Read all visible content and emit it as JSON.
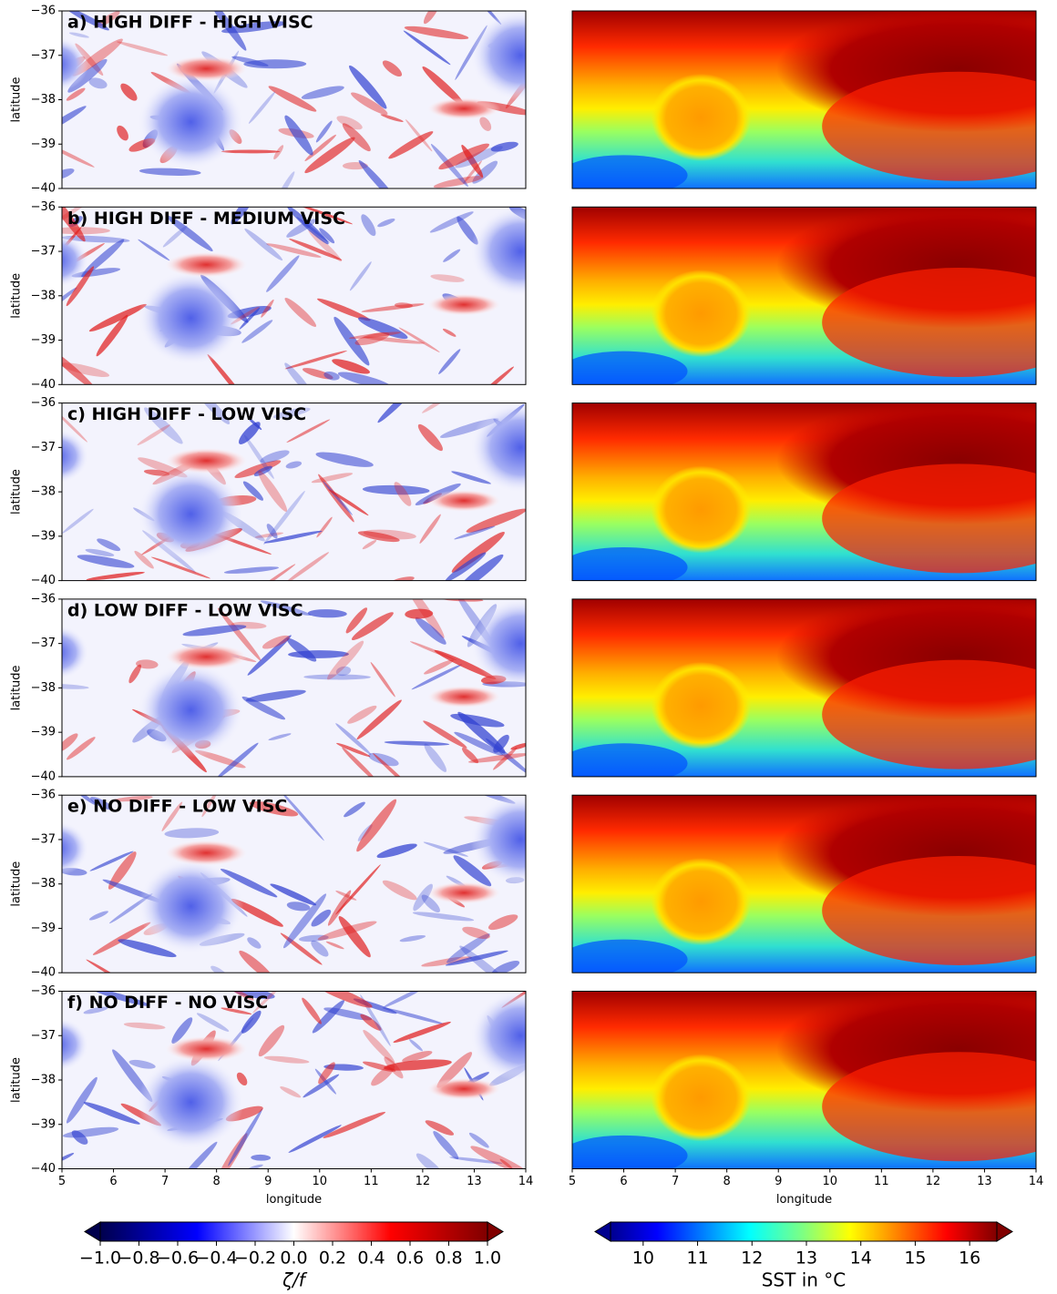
{
  "chart_data": [
    {
      "type": "heatmap",
      "colormap": "seismic",
      "title": "a) HIGH DIFF - HIGH VISC",
      "ylabel": "latitude",
      "xlim": [
        5,
        14
      ],
      "ylim": [
        -40,
        -36
      ],
      "yticks": [
        {
          "value": -36,
          "label": "−36"
        },
        {
          "value": -37,
          "label": "−37"
        },
        {
          "value": -38,
          "label": "−38"
        },
        {
          "value": -39,
          "label": "−39"
        },
        {
          "value": -40,
          "label": "−40"
        }
      ]
    },
    {
      "type": "heatmap",
      "colormap": "jet",
      "xlim": [
        5,
        14
      ],
      "ylim": [
        -40,
        -36
      ]
    },
    {
      "type": "heatmap",
      "colormap": "seismic",
      "title": "b) HIGH DIFF - MEDIUM VISC",
      "ylabel": "latitude",
      "xlim": [
        5,
        14
      ],
      "ylim": [
        -40,
        -36
      ],
      "yticks": [
        {
          "value": -36,
          "label": "−36"
        },
        {
          "value": -37,
          "label": "−37"
        },
        {
          "value": -38,
          "label": "−38"
        },
        {
          "value": -39,
          "label": "−39"
        },
        {
          "value": -40,
          "label": "−40"
        }
      ]
    },
    {
      "type": "heatmap",
      "colormap": "jet",
      "xlim": [
        5,
        14
      ],
      "ylim": [
        -40,
        -36
      ]
    },
    {
      "type": "heatmap",
      "colormap": "seismic",
      "title": "c) HIGH DIFF - LOW VISC",
      "ylabel": "latitude",
      "xlim": [
        5,
        14
      ],
      "ylim": [
        -40,
        -36
      ],
      "yticks": [
        {
          "value": -36,
          "label": "−36"
        },
        {
          "value": -37,
          "label": "−37"
        },
        {
          "value": -38,
          "label": "−38"
        },
        {
          "value": -39,
          "label": "−39"
        },
        {
          "value": -40,
          "label": "−40"
        }
      ]
    },
    {
      "type": "heatmap",
      "colormap": "jet",
      "xlim": [
        5,
        14
      ],
      "ylim": [
        -40,
        -36
      ]
    },
    {
      "type": "heatmap",
      "colormap": "seismic",
      "title": "d) LOW DIFF - LOW VISC",
      "ylabel": "latitude",
      "xlim": [
        5,
        14
      ],
      "ylim": [
        -40,
        -36
      ],
      "yticks": [
        {
          "value": -36,
          "label": "−36"
        },
        {
          "value": -37,
          "label": "−37"
        },
        {
          "value": -38,
          "label": "−38"
        },
        {
          "value": -39,
          "label": "−39"
        },
        {
          "value": -40,
          "label": "−40"
        }
      ]
    },
    {
      "type": "heatmap",
      "colormap": "jet",
      "xlim": [
        5,
        14
      ],
      "ylim": [
        -40,
        -36
      ]
    },
    {
      "type": "heatmap",
      "colormap": "seismic",
      "title": "e) NO DIFF - LOW VISC",
      "ylabel": "latitude",
      "xlim": [
        5,
        14
      ],
      "ylim": [
        -40,
        -36
      ],
      "yticks": [
        {
          "value": -36,
          "label": "−36"
        },
        {
          "value": -37,
          "label": "−37"
        },
        {
          "value": -38,
          "label": "−38"
        },
        {
          "value": -39,
          "label": "−39"
        },
        {
          "value": -40,
          "label": "−40"
        }
      ]
    },
    {
      "type": "heatmap",
      "colormap": "jet",
      "xlim": [
        5,
        14
      ],
      "ylim": [
        -40,
        -36
      ]
    },
    {
      "type": "heatmap",
      "colormap": "seismic",
      "title": "f) NO DIFF - NO VISC",
      "ylabel": "latitude",
      "xlabel": "longitude",
      "xlim": [
        5,
        14
      ],
      "ylim": [
        -40,
        -36
      ],
      "yticks": [
        {
          "value": -36,
          "label": "−36"
        },
        {
          "value": -37,
          "label": "−37"
        },
        {
          "value": -38,
          "label": "−38"
        },
        {
          "value": -39,
          "label": "−39"
        },
        {
          "value": -40,
          "label": "−40"
        }
      ],
      "xticks": [
        5,
        6,
        7,
        8,
        9,
        10,
        11,
        12,
        13,
        14
      ]
    },
    {
      "type": "heatmap",
      "colormap": "jet",
      "xlabel": "longitude",
      "xlim": [
        5,
        14
      ],
      "ylim": [
        -40,
        -36
      ],
      "xticks": [
        5,
        6,
        7,
        8,
        9,
        10,
        11,
        12,
        13,
        14
      ]
    },
    {
      "type": "colorbar",
      "colormap": "seismic",
      "label": "ζ/f",
      "xlim": [
        -1,
        1
      ],
      "xticks": [
        {
          "value": -1.0,
          "label": "−1.0"
        },
        {
          "value": -0.8,
          "label": "−0.8"
        },
        {
          "value": -0.6,
          "label": "−0.6"
        },
        {
          "value": -0.4,
          "label": "−0.4"
        },
        {
          "value": -0.2,
          "label": "−0.2"
        },
        {
          "value": 0,
          "label": "0.0"
        },
        0.2,
        0.4,
        0.6,
        0.8,
        {
          "value": 1,
          "label": "1.0"
        }
      ]
    },
    {
      "type": "colorbar",
      "colormap": "jet",
      "label": "SST in °C",
      "xlim": [
        9.4,
        16.5
      ],
      "xticks": [
        10,
        11,
        12,
        13,
        14,
        15,
        16
      ]
    }
  ]
}
